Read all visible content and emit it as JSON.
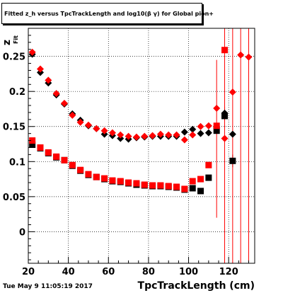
{
  "title": "Fitted z_h versus TpcTrackLength and log10(β γ) for Global pion+",
  "timestamp": "Tue May  9 11:05:19 2017",
  "chart_data": {
    "type": "scatter",
    "title": "Fitted z_h versus TpcTrackLength and log10(β γ) for Global pion+",
    "xlabel": "TpcTrackLength (cm)",
    "ylabel": "z_Fit",
    "xlim": [
      20,
      133
    ],
    "ylim": [
      -0.045,
      0.29
    ],
    "xticks": [
      20,
      40,
      60,
      80,
      100,
      120
    ],
    "yticks": [
      0,
      0.05,
      0.1,
      0.15,
      0.2,
      0.25
    ],
    "grid": true,
    "series": [
      {
        "marker": "diamond",
        "color": "#000000",
        "points": [
          [
            22,
            0.253
          ],
          [
            26,
            0.227
          ],
          [
            30,
            0.212
          ],
          [
            34,
            0.195
          ],
          [
            38,
            0.182
          ],
          [
            42,
            0.168
          ],
          [
            46,
            0.159
          ],
          [
            50,
            0.151
          ],
          [
            54,
            0.147
          ],
          [
            58,
            0.139
          ],
          [
            62,
            0.137
          ],
          [
            66,
            0.133
          ],
          [
            70,
            0.132
          ],
          [
            74,
            0.134
          ],
          [
            78,
            0.135
          ],
          [
            82,
            0.136
          ],
          [
            86,
            0.136
          ],
          [
            90,
            0.136
          ],
          [
            94,
            0.136
          ],
          [
            98,
            0.142
          ],
          [
            102,
            0.146
          ],
          [
            106,
            0.14
          ],
          [
            110,
            0.141
          ],
          [
            114,
            0.148
          ],
          [
            118,
            0.169
          ],
          [
            122,
            0.139
          ]
        ]
      },
      {
        "marker": "diamond",
        "color": "#ff0000",
        "points": [
          [
            22,
            0.256
          ],
          [
            26,
            0.232
          ],
          [
            30,
            0.216
          ],
          [
            34,
            0.197
          ],
          [
            38,
            0.183
          ],
          [
            42,
            0.166
          ],
          [
            46,
            0.156
          ],
          [
            50,
            0.152
          ],
          [
            54,
            0.147
          ],
          [
            58,
            0.144
          ],
          [
            62,
            0.141
          ],
          [
            66,
            0.138
          ],
          [
            70,
            0.136
          ],
          [
            74,
            0.135
          ],
          [
            78,
            0.136
          ],
          [
            82,
            0.137
          ],
          [
            86,
            0.139
          ],
          [
            90,
            0.138
          ],
          [
            94,
            0.138
          ],
          [
            98,
            0.131
          ],
          [
            102,
            0.138
          ],
          [
            106,
            0.15
          ],
          [
            110,
            0.151
          ],
          [
            114,
            0.176
          ],
          [
            118,
            0.133
          ],
          [
            122,
            0.199
          ],
          [
            126,
            0.252
          ],
          [
            130,
            0.249
          ]
        ]
      },
      {
        "marker": "square",
        "color": "#000000",
        "points": [
          [
            22,
            0.124
          ],
          [
            26,
            0.119
          ],
          [
            30,
            0.112
          ],
          [
            34,
            0.106
          ],
          [
            38,
            0.102
          ],
          [
            42,
            0.094
          ],
          [
            46,
            0.087
          ],
          [
            50,
            0.081
          ],
          [
            54,
            0.078
          ],
          [
            58,
            0.075
          ],
          [
            62,
            0.072
          ],
          [
            66,
            0.071
          ],
          [
            70,
            0.069
          ],
          [
            74,
            0.067
          ],
          [
            78,
            0.066
          ],
          [
            82,
            0.065
          ],
          [
            86,
            0.065
          ],
          [
            90,
            0.064
          ],
          [
            94,
            0.063
          ],
          [
            98,
            0.06
          ],
          [
            102,
            0.062
          ],
          [
            106,
            0.058
          ],
          [
            110,
            0.077
          ],
          [
            114,
            0.144
          ],
          [
            118,
            0.165
          ],
          [
            122,
            0.101
          ]
        ]
      },
      {
        "marker": "square",
        "color": "#ff0000",
        "points": [
          [
            22,
            0.13
          ],
          [
            26,
            0.12
          ],
          [
            30,
            0.113
          ],
          [
            34,
            0.107
          ],
          [
            38,
            0.102
          ],
          [
            42,
            0.095
          ],
          [
            46,
            0.088
          ],
          [
            50,
            0.082
          ],
          [
            54,
            0.078
          ],
          [
            58,
            0.076
          ],
          [
            62,
            0.073
          ],
          [
            66,
            0.072
          ],
          [
            70,
            0.07
          ],
          [
            74,
            0.069
          ],
          [
            78,
            0.067
          ],
          [
            82,
            0.066
          ],
          [
            86,
            0.066
          ],
          [
            90,
            0.065
          ],
          [
            94,
            0.064
          ],
          [
            98,
            0.061
          ],
          [
            102,
            0.072
          ],
          [
            106,
            0.075
          ],
          [
            110,
            0.095
          ],
          [
            114,
            0.151
          ],
          [
            118,
            0.259
          ]
        ]
      }
    ],
    "error_bars": [
      {
        "color": "#000000",
        "x": 118,
        "low": 0.158,
        "high": 0.178
      },
      {
        "color": "#000000",
        "x": 122,
        "low": 0.092,
        "high": 0.11
      },
      {
        "color": "#ff0000",
        "x": 114,
        "low": 0.02,
        "high": 0.245
      },
      {
        "color": "#ff0000",
        "x": 118,
        "low": -0.045,
        "high": 0.29
      },
      {
        "color": "#ff0000",
        "x": 122,
        "low": -0.045,
        "high": 0.29
      },
      {
        "color": "#ff0000",
        "x": 126,
        "low": -0.045,
        "high": 0.29
      },
      {
        "color": "#ff0000",
        "x": 130,
        "low": -0.045,
        "high": 0.29
      }
    ]
  }
}
